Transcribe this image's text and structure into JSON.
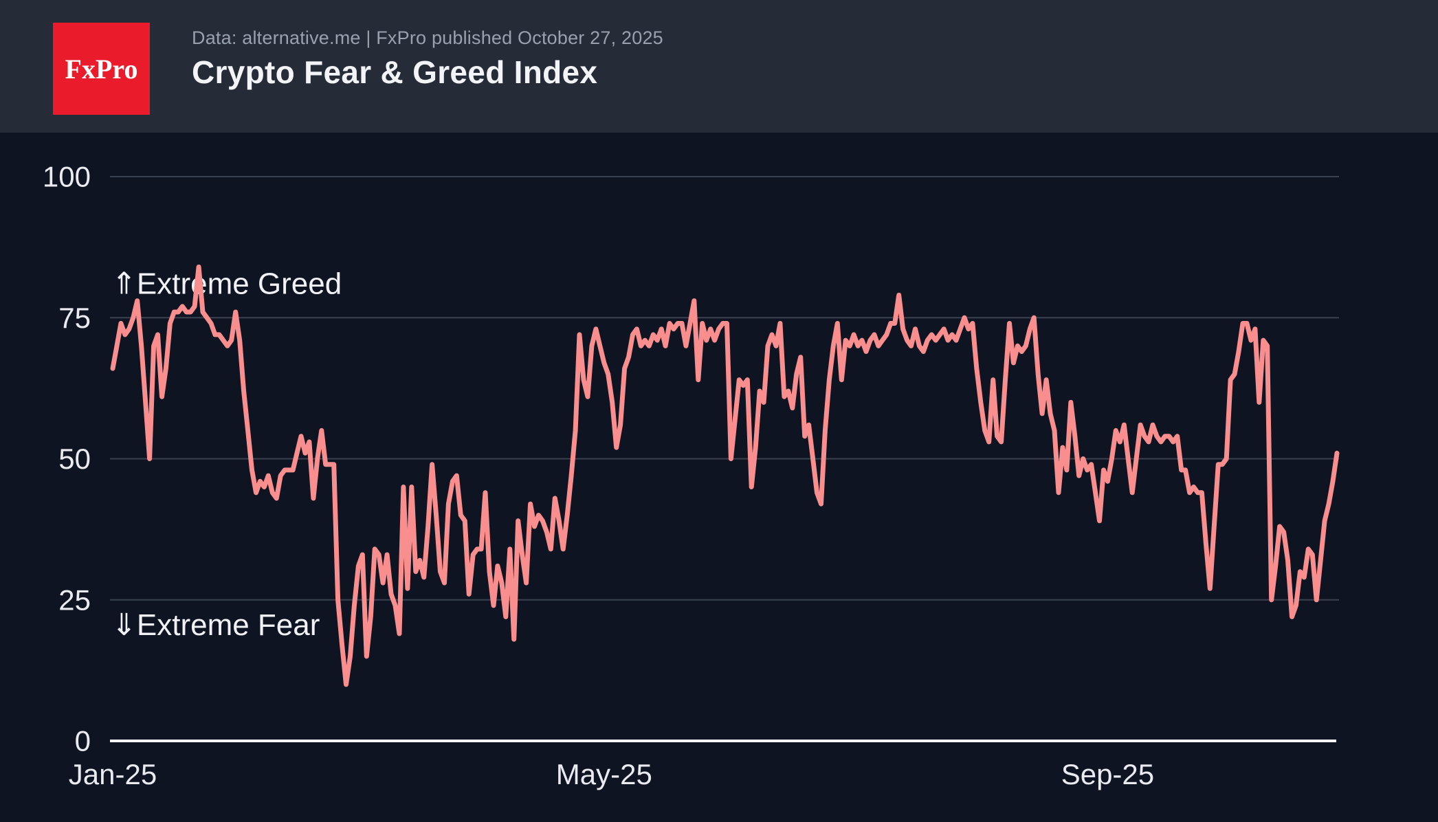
{
  "header": {
    "logo_text": "FxPro",
    "meta": "Data: alternative.me | FxPro published October 27, 2025",
    "title": "Crypto Fear & Greed Index"
  },
  "colors": {
    "header_background": "#262B38",
    "chart_background": "#0E1421",
    "line": "#F98E8E",
    "gridline": "#3A4150",
    "axis": "#F5F6F8",
    "tick_label": "#E9EBF0",
    "annotation_text": "#F0F2F6",
    "logo_red": "#EA1B2A",
    "meta_text": "#9AA1AE",
    "title_text": "#F2F4F8"
  },
  "chart_data": {
    "type": "line",
    "title": "Crypto Fear & Greed Index",
    "source_note": "Data: alternative.me | FxPro published October 27, 2025",
    "xlabel": "",
    "ylabel": "",
    "ylim": [
      0,
      100
    ],
    "grid": "horizontal",
    "legend_position": "none",
    "y_ticks": [
      0,
      25,
      50,
      75,
      100
    ],
    "x_ticks": [
      {
        "label": "Jan-25",
        "day": 0
      },
      {
        "label": "May-25",
        "day": 120
      },
      {
        "label": "Sep-25",
        "day": 243
      }
    ],
    "x_unit": "days since Jan 1, 2025 (daily index values through Oct 27, 2025)",
    "annotations": [
      {
        "text": "⇑Extreme Greed",
        "value": 81,
        "name": "annotation-extreme-greed"
      },
      {
        "text": "⇓Extreme Fear",
        "value": 20.5,
        "name": "annotation-extreme-fear"
      }
    ],
    "series": [
      {
        "name": "Crypto Fear & Greed Index",
        "values": [
          66,
          70,
          74,
          72,
          73,
          75,
          78,
          70,
          60,
          50,
          70,
          72,
          61,
          66,
          74,
          76,
          76,
          77,
          76,
          76,
          77,
          84,
          76,
          75,
          74,
          72,
          72,
          71,
          70,
          71,
          76,
          71,
          62,
          55,
          48,
          44,
          46,
          45,
          47,
          44,
          43,
          47,
          48,
          48,
          48,
          51,
          54,
          51,
          53,
          43,
          50,
          55,
          49,
          49,
          49,
          25,
          17,
          10,
          15,
          24,
          31,
          33,
          15,
          22,
          34,
          33,
          28,
          33,
          26,
          24,
          19,
          45,
          27,
          45,
          30,
          32,
          29,
          38,
          49,
          40,
          30,
          28,
          42,
          46,
          47,
          40,
          39,
          26,
          33,
          34,
          34,
          44,
          30,
          24,
          31,
          28,
          22,
          34,
          18,
          39,
          33,
          28,
          42,
          38,
          40,
          39,
          37,
          34,
          43,
          39,
          34,
          40,
          47,
          55,
          72,
          64,
          61,
          70,
          73,
          70,
          67,
          65,
          60,
          52,
          56,
          66,
          68,
          72,
          73,
          70,
          71,
          70,
          72,
          71,
          73,
          70,
          74,
          73,
          74,
          74,
          70,
          74,
          78,
          64,
          74,
          71,
          73,
          71,
          73,
          74,
          74,
          50,
          57,
          64,
          63,
          64,
          45,
          52,
          62,
          60,
          70,
          72,
          70,
          74,
          61,
          62,
          59,
          65,
          68,
          54,
          56,
          50,
          44,
          42,
          55,
          64,
          70,
          74,
          64,
          71,
          70,
          72,
          70,
          71,
          69,
          71,
          72,
          70,
          71,
          72,
          74,
          74,
          79,
          73,
          71,
          70,
          73,
          70,
          69,
          71,
          72,
          71,
          72,
          73,
          71,
          72,
          71,
          73,
          75,
          73,
          74,
          66,
          60,
          55,
          53,
          64,
          54,
          53,
          64,
          74,
          67,
          70,
          69,
          70,
          73,
          75,
          65,
          58,
          64,
          58,
          55,
          44,
          52,
          48,
          60,
          54,
          47,
          50,
          48,
          49,
          44,
          39,
          48,
          46,
          50,
          55,
          53,
          56,
          50,
          44,
          50,
          56,
          54,
          53,
          56,
          54,
          53,
          54,
          54,
          53,
          54,
          48,
          48,
          44,
          45,
          44,
          44,
          35,
          27,
          38,
          49,
          49,
          50,
          64,
          65,
          69,
          74,
          74,
          71,
          73,
          60,
          71,
          70,
          25,
          31,
          38,
          37,
          32,
          22,
          24,
          30,
          29,
          34,
          33,
          25,
          32,
          39,
          42,
          46,
          51
        ]
      }
    ]
  }
}
